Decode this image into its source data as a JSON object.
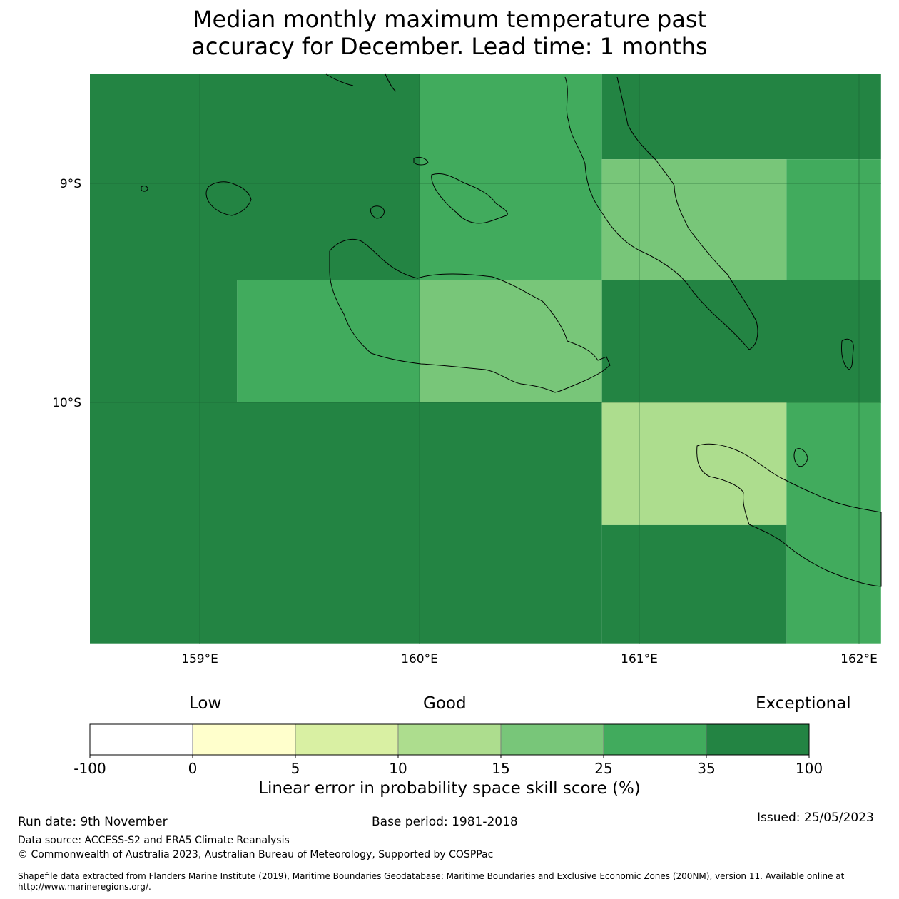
{
  "title_line1": "Median monthly maximum temperature past",
  "title_line2": "accuracy for December. Lead time: 1 months",
  "map": {
    "lon_range": [
      158.5,
      162.1
    ],
    "lat_range": [
      -11.1,
      -8.5
    ],
    "lon_ticks": [
      {
        "value": 159,
        "label": "159°E"
      },
      {
        "value": 160,
        "label": "160°E"
      },
      {
        "value": 161,
        "label": "161°E"
      },
      {
        "value": 162,
        "label": "162°E"
      }
    ],
    "lat_ticks": [
      {
        "value": -9,
        "label": "9°S"
      },
      {
        "value": -10,
        "label": "10°S"
      }
    ],
    "cells": [
      {
        "lon": [
          158.5,
          160.0
        ],
        "lat": [
          -9.44,
          -8.5
        ],
        "category": "35-100",
        "color": "#238443"
      },
      {
        "lon": [
          160.0,
          160.83
        ],
        "lat": [
          -9.44,
          -8.5
        ],
        "category": "25-35",
        "color": "#41ab5d"
      },
      {
        "lon": [
          160.83,
          162.1
        ],
        "lat": [
          -8.89,
          -8.5
        ],
        "category": "35-100",
        "color": "#238443"
      },
      {
        "lon": [
          160.83,
          161.67
        ],
        "lat": [
          -9.44,
          -8.89
        ],
        "category": "15-25",
        "color": "#78c679"
      },
      {
        "lon": [
          161.67,
          162.1
        ],
        "lat": [
          -9.44,
          -8.89
        ],
        "category": "25-35",
        "color": "#41ab5d"
      },
      {
        "lon": [
          158.5,
          159.17
        ],
        "lat": [
          -10.0,
          -9.44
        ],
        "category": "35-100",
        "color": "#238443"
      },
      {
        "lon": [
          159.17,
          160.0
        ],
        "lat": [
          -10.0,
          -9.44
        ],
        "category": "25-35",
        "color": "#41ab5d"
      },
      {
        "lon": [
          160.0,
          160.83
        ],
        "lat": [
          -10.0,
          -9.44
        ],
        "category": "15-25",
        "color": "#78c679"
      },
      {
        "lon": [
          160.83,
          162.1
        ],
        "lat": [
          -10.0,
          -9.44
        ],
        "category": "35-100",
        "color": "#238443"
      },
      {
        "lon": [
          158.5,
          160.83
        ],
        "lat": [
          -11.1,
          -10.0
        ],
        "category": "35-100",
        "color": "#238443"
      },
      {
        "lon": [
          160.83,
          161.67
        ],
        "lat": [
          -10.56,
          -10.0
        ],
        "category": "10-15",
        "color": "#addd8e"
      },
      {
        "lon": [
          161.67,
          162.1
        ],
        "lat": [
          -11.1,
          -10.0
        ],
        "category": "25-35",
        "color": "#41ab5d"
      },
      {
        "lon": [
          160.83,
          161.67
        ],
        "lat": [
          -11.1,
          -10.56
        ],
        "category": "35-100",
        "color": "#238443"
      }
    ]
  },
  "colorbar": {
    "label_low": "Low",
    "label_good": "Good",
    "label_exceptional": "Exceptional",
    "bins": [
      {
        "from": "-100",
        "to": "0",
        "color": "#ffffff"
      },
      {
        "from": "0",
        "to": "5",
        "color": "#ffffcc"
      },
      {
        "from": "5",
        "to": "10",
        "color": "#d9f0a3"
      },
      {
        "from": "10",
        "to": "15",
        "color": "#addd8e"
      },
      {
        "from": "15",
        "to": "25",
        "color": "#78c679"
      },
      {
        "from": "25",
        "to": "35",
        "color": "#41ab5d"
      },
      {
        "from": "35",
        "to": "100",
        "color": "#238443"
      }
    ],
    "tick_labels": [
      "-100",
      "0",
      "5",
      "10",
      "15",
      "25",
      "35",
      "100"
    ],
    "axis_label": "Linear error in probability space skill score (%)"
  },
  "footer": {
    "run_date": "Run date: 9th November",
    "base_period": "Base period: 1981-2018",
    "issued": "Issued: 25/05/2023",
    "data_source": "Data source: ACCESS-S2 and ERA5 Climate Reanalysis",
    "copyright": "© Commonwealth of Australia 2023, Australian Bureau of Meteorology, Supported by COSPPac",
    "shapefile_1": "Shapefile data extracted from Flanders Marine Institute (2019), Maritime Boundaries Geodatabase: Maritime Boundaries and Exclusive Economic Zones (200NM), version 11. Available online at",
    "shapefile_2": "http://www.marineregions.org/."
  }
}
